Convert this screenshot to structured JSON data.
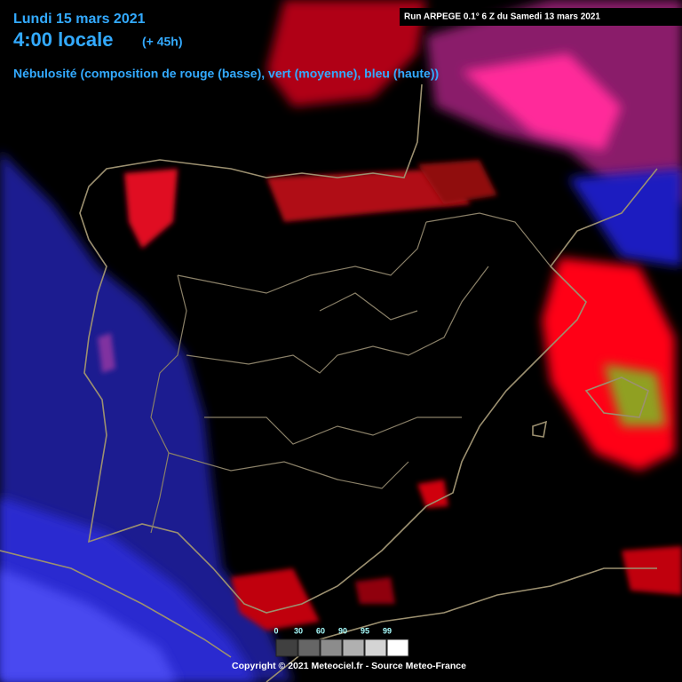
{
  "header": {
    "date": "Lundi 15 mars 2021",
    "time": "4:00 locale",
    "lead": "(+ 45h)",
    "description": "Nébulosité (composition de rouge (basse), vert (moyenne), bleu (haute))",
    "run": "Run ARPEGE 0.1° 6 Z du Samedi 13 mars 2021"
  },
  "legend": {
    "items": [
      {
        "label": "0",
        "color": "#404040"
      },
      {
        "label": "30",
        "color": "#666666"
      },
      {
        "label": "60",
        "color": "#8c8c8c"
      },
      {
        "label": "90",
        "color": "#b0b0b0"
      },
      {
        "label": "95",
        "color": "#d4d4d4"
      },
      {
        "label": "99",
        "color": "#ffffff"
      }
    ]
  },
  "footer": {
    "copyright": "Copyright © 2021 Meteociel.fr - Source Meteo-France"
  }
}
